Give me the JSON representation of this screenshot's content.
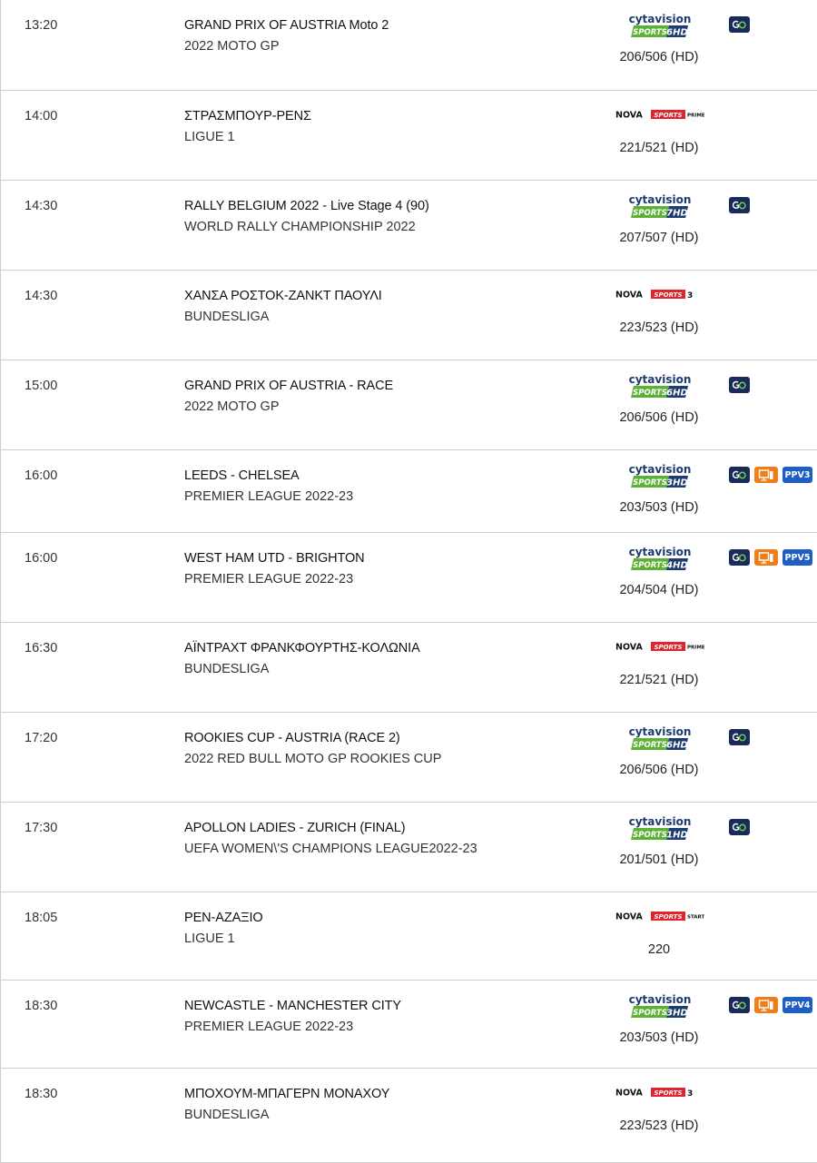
{
  "events": [
    {
      "time": "13:20",
      "title": "GRAND PRIX OF AUSTRIA Moto 2",
      "competition": "2022 MOTO GP",
      "logo": {
        "brand": "cytavision",
        "sports": "SPORTS",
        "num": "6HD"
      },
      "channel": "206/506 (HD)",
      "badges": [
        "go-icon"
      ]
    },
    {
      "time": "14:00",
      "title": "ΣΤΡΑΣΜΠΟΥΡ-ΡΕΝΣ",
      "competition": "LIGUE 1",
      "logo": {
        "brand": "NOVA",
        "sports": "SPORTS",
        "num": "PRIME"
      },
      "channel": "221/521 (HD)",
      "badges": []
    },
    {
      "time": "14:30",
      "title": "RALLY BELGIUM 2022 - Live Stage 4 (90)",
      "competition": "WORLD RALLY CHAMPIONSHIP 2022",
      "logo": {
        "brand": "cytavision",
        "sports": "SPORTS",
        "num": "7HD"
      },
      "channel": "207/507 (HD)",
      "badges": [
        "go-icon"
      ]
    },
    {
      "time": "14:30",
      "title": "ΧΑΝΣΑ ΡΟΣΤΟΚ-ΖΑΝΚΤ ΠΑΟΥΛΙ",
      "competition": "BUNDESLIGA",
      "logo": {
        "brand": "NOVA",
        "sports": "SPORTS",
        "num": "3"
      },
      "channel": "223/523 (HD)",
      "badges": []
    },
    {
      "time": "15:00",
      "title": "GRAND PRIX OF AUSTRIA - RACE",
      "competition": "2022 MOTO GP",
      "logo": {
        "brand": "cytavision",
        "sports": "SPORTS",
        "num": "6HD"
      },
      "channel": "206/506 (HD)",
      "badges": [
        "go-icon"
      ]
    },
    {
      "time": "16:00",
      "title": "LEEDS - CHELSEA",
      "competition": "PREMIER LEAGUE 2022-23",
      "logo": {
        "brand": "cytavision",
        "sports": "SPORTS",
        "num": "3HD"
      },
      "channel": "203/503 (HD)",
      "badges": [
        "go-icon",
        "tv-icon",
        "PPV3"
      ]
    },
    {
      "time": "16:00",
      "title": "WEST HAM UTD - BRIGHTON",
      "competition": "PREMIER LEAGUE 2022-23",
      "logo": {
        "brand": "cytavision",
        "sports": "SPORTS",
        "num": "4HD"
      },
      "channel": "204/504 (HD)",
      "badges": [
        "go-icon",
        "tv-icon",
        "PPV5"
      ]
    },
    {
      "time": "16:30",
      "title": "ΑΪΝΤΡΑΧΤ ΦΡΑΝΚΦΟΥΡΤΗΣ-ΚΟΛΩΝΙΑ",
      "competition": "BUNDESLIGA",
      "logo": {
        "brand": "NOVA",
        "sports": "SPORTS",
        "num": "PRIME"
      },
      "channel": "221/521 (HD)",
      "badges": []
    },
    {
      "time": "17:20",
      "title": "ROOKIES CUP - AUSTRIA (RACE 2)",
      "competition": "2022 RED BULL MOTO GP ROOKIES CUP",
      "logo": {
        "brand": "cytavision",
        "sports": "SPORTS",
        "num": "6HD"
      },
      "channel": "206/506 (HD)",
      "badges": [
        "go-icon"
      ]
    },
    {
      "time": "17:30",
      "title": "APOLLON LADIES - ZURICH (FINAL)",
      "competition": "UEFA WOMEN\\'S CHAMPIONS LEAGUE2022-23",
      "logo": {
        "brand": "cytavision",
        "sports": "SPORTS",
        "num": "1HD"
      },
      "channel": "201/501 (HD)",
      "badges": [
        "go-icon"
      ]
    },
    {
      "time": "18:05",
      "title": "ΡΕΝ-ΑΖΑΞΙΟ",
      "competition": "LIGUE 1",
      "logo": {
        "brand": "NOVA",
        "sports": "SPORTS",
        "num": "START"
      },
      "channel": "220",
      "badges": []
    },
    {
      "time": "18:30",
      "title": "NEWCASTLE - MANCHESTER CITY",
      "competition": "PREMIER LEAGUE 2022-23",
      "logo": {
        "brand": "cytavision",
        "sports": "SPORTS",
        "num": "3HD"
      },
      "channel": "203/503 (HD)",
      "badges": [
        "go-icon",
        "tv-icon",
        "PPV4"
      ]
    },
    {
      "time": "18:30",
      "title": "ΜΠΟΧΟΥΜ-ΜΠΑΓΕΡΝ ΜΟΝΑΧΟΥ",
      "competition": "BUNDESLIGA",
      "logo": {
        "brand": "NOVA",
        "sports": "SPORTS",
        "num": "3"
      },
      "channel": "223/523 (HD)",
      "badges": []
    }
  ],
  "colors": {
    "cyta_green": "#5cb135",
    "cyta_navy": "#1d3b6f",
    "nova_red": "#e1242b",
    "go_navy": "#1a2a5a",
    "tv_orange": "#ef7d1a",
    "ppv_blue": "#1f5fc4"
  },
  "badge_labels": {
    "go": "G"
  }
}
